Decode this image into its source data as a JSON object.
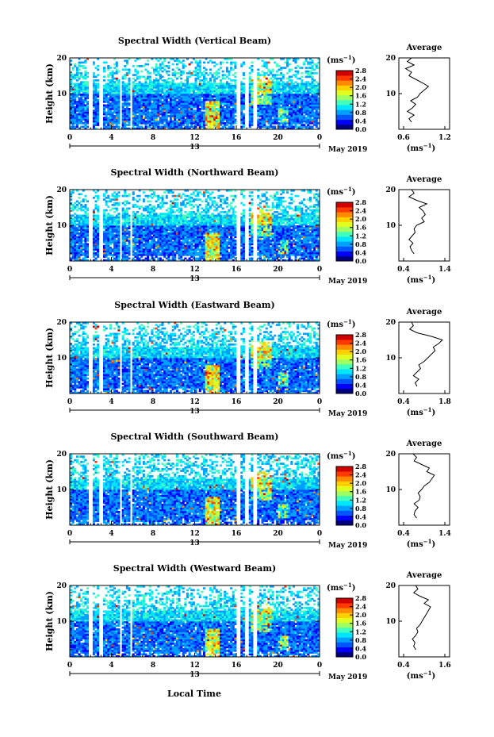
{
  "figure": {
    "xlabel": "Local Time",
    "ylabel": "Height (km)",
    "x_ticks": [
      "0",
      "4",
      "8",
      "12",
      "16",
      "20",
      "0"
    ],
    "date_label": "May 2019",
    "day_label": "13",
    "colorbar_unit": "(ms",
    "colorbar_unit_exp": "−1",
    "colorbar_unit_close": ")",
    "colorbar_ticks": [
      "0.0",
      "0.4",
      "0.8",
      "1.2",
      "1.6",
      "2.0",
      "2.4",
      "2.8"
    ],
    "colorbar_colors": [
      "#00007f",
      "#0000ff",
      "#0055ff",
      "#00a0ff",
      "#00e5ff",
      "#40ffbf",
      "#9fff60",
      "#e0ff20",
      "#ffd000",
      "#ff8a00",
      "#ff3a00",
      "#d00000"
    ],
    "average_title": "Average",
    "average_xlabel": "(ms",
    "average_xlabel_exp": "−1",
    "average_xlabel_close": ")",
    "y_ticks": [
      "20",
      "10"
    ]
  },
  "chart_data": [
    {
      "type": "heatmap",
      "title": "Spectral Width (Vertical Beam)",
      "x_range": [
        0,
        24
      ],
      "ylim": [
        0,
        20
      ],
      "color_range": [
        0.0,
        2.8
      ],
      "white_gaps_local_time": [
        [
          1.9,
          2.1
        ],
        [
          2.9,
          3.3
        ],
        [
          4.8,
          5.0
        ],
        [
          5.7,
          6.0
        ],
        [
          16.0,
          16.3
        ],
        [
          16.9,
          17.2
        ],
        [
          17.7,
          18.0
        ]
      ],
      "average_profile": {
        "xlim": [
          0.6,
          1.2
        ],
        "x_ticks": [
          "0.6",
          "1.2"
        ],
        "height_km": [
          2,
          3,
          4,
          5,
          6,
          7,
          8,
          9,
          10,
          11,
          12,
          13,
          14,
          15,
          16,
          17,
          18,
          19,
          20
        ],
        "spectral_width": [
          0.75,
          0.72,
          0.78,
          0.7,
          0.76,
          0.8,
          0.74,
          0.82,
          0.85,
          0.9,
          0.95,
          0.88,
          0.8,
          0.72,
          0.75,
          0.68,
          0.78,
          0.7,
          0.75
        ]
      }
    },
    {
      "type": "heatmap",
      "title": "Spectral Width (Northward Beam)",
      "x_range": [
        0,
        24
      ],
      "ylim": [
        0,
        20
      ],
      "color_range": [
        0.0,
        2.8
      ],
      "white_gaps_local_time": [
        [
          1.9,
          2.1
        ],
        [
          2.9,
          3.3
        ],
        [
          4.8,
          5.0
        ],
        [
          5.7,
          6.0
        ],
        [
          16.0,
          16.3
        ],
        [
          16.9,
          17.2
        ],
        [
          17.7,
          18.0
        ]
      ],
      "average_profile": {
        "xlim": [
          0.4,
          1.4
        ],
        "x_ticks": [
          "0.4",
          "1.4"
        ],
        "height_km": [
          2,
          3,
          4,
          5,
          6,
          7,
          8,
          9,
          10,
          11,
          12,
          13,
          14,
          15,
          16,
          17,
          18,
          19,
          20
        ],
        "spectral_width": [
          0.7,
          0.65,
          0.62,
          0.68,
          0.6,
          0.66,
          0.72,
          0.7,
          0.75,
          0.9,
          0.85,
          0.92,
          0.88,
          0.8,
          0.95,
          0.75,
          0.6,
          0.7,
          0.65
        ]
      }
    },
    {
      "type": "heatmap",
      "title": "Spectral Width (Eastward Beam)",
      "x_range": [
        0,
        24
      ],
      "ylim": [
        0,
        20
      ],
      "color_range": [
        0.0,
        2.8
      ],
      "white_gaps_local_time": [
        [
          1.9,
          2.1
        ],
        [
          2.9,
          3.3
        ],
        [
          4.8,
          5.0
        ],
        [
          5.7,
          6.0
        ],
        [
          16.0,
          16.3
        ],
        [
          16.9,
          17.2
        ],
        [
          17.7,
          18.0
        ]
      ],
      "average_profile": {
        "xlim": [
          0.4,
          1.8
        ],
        "x_ticks": [
          "0.4",
          "1.8"
        ],
        "height_km": [
          2,
          3,
          4,
          5,
          6,
          7,
          8,
          9,
          10,
          11,
          12,
          13,
          14,
          15,
          16,
          17,
          18,
          19,
          20
        ],
        "spectral_width": [
          0.9,
          0.85,
          0.95,
          0.8,
          0.9,
          1.0,
          0.95,
          1.1,
          1.2,
          1.3,
          1.4,
          1.35,
          1.5,
          1.6,
          1.3,
          0.9,
          0.7,
          0.8,
          0.75
        ]
      }
    },
    {
      "type": "heatmap",
      "title": "Spectral Width (Southward Beam)",
      "x_range": [
        0,
        24
      ],
      "ylim": [
        0,
        20
      ],
      "color_range": [
        0.0,
        2.8
      ],
      "white_gaps_local_time": [
        [
          1.9,
          2.1
        ],
        [
          2.9,
          3.3
        ],
        [
          4.8,
          5.0
        ],
        [
          5.7,
          6.0
        ],
        [
          16.0,
          16.3
        ],
        [
          16.9,
          17.2
        ],
        [
          17.7,
          18.0
        ]
      ],
      "average_profile": {
        "xlim": [
          0.4,
          1.4
        ],
        "x_ticks": [
          "0.4",
          "1.4"
        ],
        "height_km": [
          2,
          3,
          4,
          5,
          6,
          7,
          8,
          9,
          10,
          11,
          12,
          13,
          14,
          15,
          16,
          17,
          18,
          19,
          20
        ],
        "spectral_width": [
          0.75,
          0.7,
          0.72,
          0.78,
          0.7,
          0.8,
          0.82,
          0.78,
          0.85,
          0.9,
          1.0,
          1.05,
          1.1,
          0.95,
          1.0,
          0.85,
          0.7,
          0.75,
          0.68
        ]
      }
    },
    {
      "type": "heatmap",
      "title": "Spectral Width (Westward Beam)",
      "x_range": [
        0,
        24
      ],
      "ylim": [
        0,
        20
      ],
      "color_range": [
        0.0,
        2.8
      ],
      "white_gaps_local_time": [
        [
          1.9,
          2.1
        ],
        [
          2.9,
          3.3
        ],
        [
          4.8,
          5.0
        ],
        [
          5.7,
          6.0
        ],
        [
          16.0,
          16.3
        ],
        [
          16.9,
          17.2
        ],
        [
          17.7,
          18.0
        ]
      ],
      "average_profile": {
        "xlim": [
          0.4,
          1.6
        ],
        "x_ticks": [
          "0.4",
          "1.6"
        ],
        "height_km": [
          2,
          3,
          4,
          5,
          6,
          7,
          8,
          9,
          10,
          11,
          12,
          13,
          14,
          15,
          16,
          17,
          18,
          19,
          20
        ],
        "spectral_width": [
          0.8,
          0.75,
          0.78,
          0.72,
          0.8,
          0.85,
          0.82,
          0.9,
          0.95,
          1.0,
          1.05,
          1.1,
          1.15,
          1.0,
          1.1,
          0.9,
          0.75,
          0.85,
          0.8
        ]
      }
    }
  ]
}
